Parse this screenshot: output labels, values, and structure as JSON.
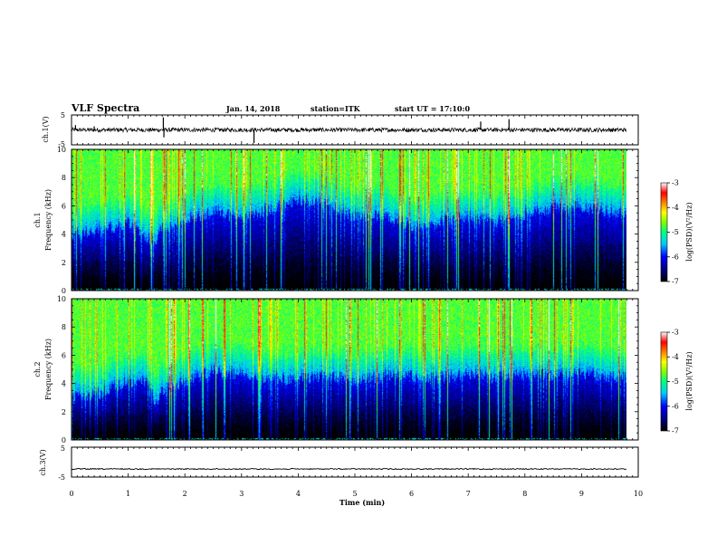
{
  "header": {
    "title": "VLF Spectra",
    "date": "Jan. 14, 2018",
    "station": "station=ITK",
    "start": "start UT =  17:10:0"
  },
  "chart_data": {
    "type": "heatmap",
    "x_axis": {
      "label": "Time (min)",
      "range": [
        0,
        10
      ],
      "ticks": [
        0,
        1,
        2,
        3,
        4,
        5,
        6,
        7,
        8,
        9,
        10
      ],
      "data_end": 9.8
    },
    "waveform_ch1": {
      "ylabel": "ch.1(V)",
      "ylim": [
        -5,
        5
      ],
      "tick_labels": [
        "5",
        "-5"
      ],
      "baseline": 0,
      "spikes": [
        {
          "t": 0.07,
          "y": 1.6
        },
        {
          "t": 0.4,
          "y": 1.2
        },
        {
          "t": 1.62,
          "y": 4.2
        },
        {
          "t": 1.63,
          "y": -2.5
        },
        {
          "t": 3.22,
          "y": -4.4
        },
        {
          "t": 7.22,
          "y": 2.8
        },
        {
          "t": 7.72,
          "y": 3.6
        }
      ]
    },
    "spectrogram_ch1": {
      "ylabel": "ch.1 Frequency (kHz)",
      "ylim": [
        0,
        10
      ],
      "yticks": [
        0,
        2,
        4,
        6,
        8,
        10
      ],
      "noise_floor_kHz": [
        [
          0.0,
          4.0
        ],
        [
          0.5,
          4.3
        ],
        [
          1.0,
          4.8
        ],
        [
          1.3,
          3.8
        ],
        [
          1.5,
          3.6
        ],
        [
          1.6,
          4.6
        ],
        [
          2.0,
          5.0
        ],
        [
          2.5,
          5.6
        ],
        [
          3.0,
          5.3
        ],
        [
          3.5,
          5.7
        ],
        [
          4.0,
          6.5
        ],
        [
          4.5,
          6.2
        ],
        [
          5.0,
          5.2
        ],
        [
          5.5,
          5.4
        ],
        [
          6.0,
          4.6
        ],
        [
          6.5,
          4.9
        ],
        [
          7.0,
          5.3
        ],
        [
          7.5,
          4.9
        ],
        [
          8.0,
          5.4
        ],
        [
          8.5,
          5.9
        ],
        [
          9.0,
          6.0
        ],
        [
          9.5,
          5.6
        ],
        [
          9.8,
          5.5
        ]
      ]
    },
    "spectrogram_ch2": {
      "ylabel": "ch.2 Frequency (kHz)",
      "ylim": [
        0,
        10
      ],
      "yticks": [
        0,
        2,
        4,
        6,
        8,
        10
      ],
      "noise_floor_kHz": [
        [
          0.0,
          3.0
        ],
        [
          0.5,
          3.3
        ],
        [
          1.0,
          4.2
        ],
        [
          1.3,
          4.3
        ],
        [
          1.5,
          2.5
        ],
        [
          1.6,
          3.6
        ],
        [
          2.0,
          4.2
        ],
        [
          2.5,
          4.9
        ],
        [
          3.0,
          4.6
        ],
        [
          3.5,
          4.4
        ],
        [
          4.0,
          4.3
        ],
        [
          4.5,
          4.6
        ],
        [
          5.0,
          4.2
        ],
        [
          5.5,
          4.6
        ],
        [
          6.0,
          4.5
        ],
        [
          6.5,
          4.4
        ],
        [
          7.0,
          4.7
        ],
        [
          7.5,
          4.5
        ],
        [
          8.0,
          4.8
        ],
        [
          8.5,
          4.6
        ],
        [
          9.0,
          4.8
        ],
        [
          9.5,
          4.5
        ],
        [
          9.8,
          4.4
        ]
      ]
    },
    "waveform_ch3": {
      "ylabel": "ch.3(V)",
      "ylim": [
        -5,
        5
      ],
      "tick_labels": [
        "5",
        "-5"
      ],
      "baseline": -2.3
    },
    "colorbar": {
      "label": "log(PSD)(V²/Hz)",
      "range": [
        -7,
        -3
      ],
      "ticks": [
        -3,
        -4,
        -5,
        -6,
        -7
      ],
      "colors": [
        "#000000",
        "#000080",
        "#0000ff",
        "#00c8ff",
        "#00ff80",
        "#80ff00",
        "#ffff00",
        "#ff8000",
        "#ff0000",
        "#ffffff"
      ]
    }
  }
}
